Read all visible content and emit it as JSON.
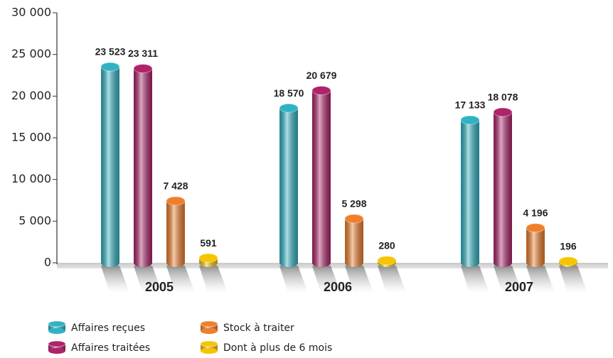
{
  "chart_data": {
    "type": "bar",
    "categories": [
      "2005",
      "2006",
      "2007"
    ],
    "series": [
      {
        "name": "Affaires reçues",
        "color": "#2fb3c4",
        "values": [
          23523,
          18570,
          17133
        ],
        "value_labels": [
          "23 523",
          "18 570",
          "17 133"
        ]
      },
      {
        "name": "Affaires traitées",
        "color": "#b0226a",
        "values": [
          23311,
          20679,
          18078
        ],
        "value_labels": [
          "23 311",
          "20 679",
          "18 078"
        ]
      },
      {
        "name": "Stock à traiter",
        "color": "#f07f2a",
        "values": [
          7428,
          5298,
          4196
        ],
        "value_labels": [
          "7 428",
          "5 298",
          "4 196"
        ]
      },
      {
        "name": "Dont à plus de 6 mois",
        "color": "#f7c400",
        "values": [
          591,
          280,
          196
        ],
        "value_labels": [
          "591",
          "280",
          "196"
        ]
      }
    ],
    "ylim": [
      0,
      30000
    ],
    "yticks": [
      0,
      {
        "value": 5000,
        "label": "5 000"
      },
      {
        "value": 10000,
        "label": "10 000"
      },
      {
        "value": 15000,
        "label": "15 000"
      },
      {
        "value": 20000,
        "label": "20 000"
      },
      {
        "value": 25000,
        "label": "25 000"
      },
      {
        "value": 30000,
        "label": "30 000"
      }
    ]
  }
}
